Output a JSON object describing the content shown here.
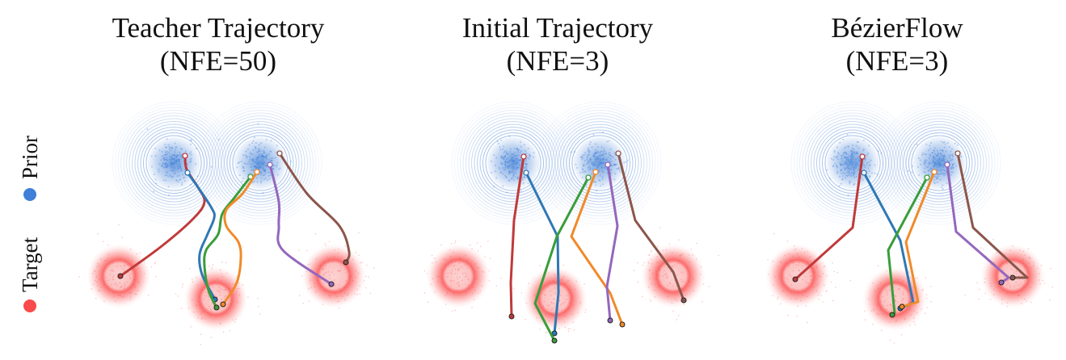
{
  "legend": {
    "prior_label": "Prior",
    "target_label": "Target",
    "prior_color": "#3f7fd9",
    "target_color": "#fb4a4a"
  },
  "panels": [
    {
      "title_line1": "Teacher Trajectory",
      "title_line2": "(NFE=50)",
      "nfe": 50,
      "path_style": "curved"
    },
    {
      "title_line1": "Initial Trajectory",
      "title_line2": "(NFE=3)",
      "nfe": 3,
      "path_style": "piecewise-linear"
    },
    {
      "title_line1": "BézierFlow",
      "title_line2": "(NFE=3)",
      "nfe": 3,
      "path_style": "piecewise-linear"
    }
  ],
  "trajectory_colors": [
    "#c03a3a",
    "#2f78b4",
    "#3a9d3a",
    "#f08a2a",
    "#9467bd",
    "#8c564b"
  ]
}
